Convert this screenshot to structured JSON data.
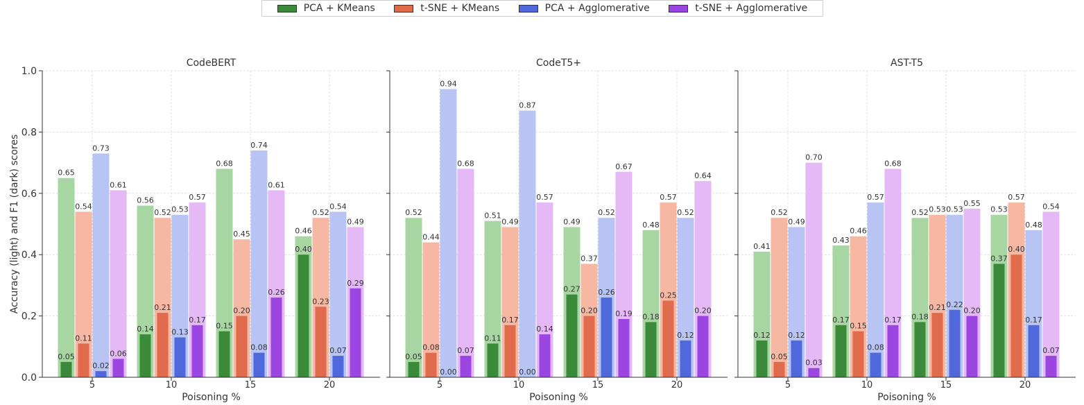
{
  "chart_data": {
    "type": "bar",
    "ylabel": "Accuracy (light) and F1 (dark) scores",
    "ylim": [
      0,
      1.0
    ],
    "yticks": [
      "0.0",
      "0.2",
      "0.4",
      "0.6",
      "0.8",
      "1.0"
    ],
    "grid": true,
    "legend_position": "top-center",
    "categories": [
      "5",
      "10",
      "15",
      "20"
    ],
    "methods": [
      {
        "name": "PCA + KMeans",
        "color": "#3a8a3a",
        "light_color": "#a8d6a2"
      },
      {
        "name": "t-SNE + KMeans",
        "color": "#e06a4c",
        "light_color": "#f6b7a3"
      },
      {
        "name": "PCA + Agglomerative",
        "color": "#4f68dc",
        "light_color": "#b8c4f4"
      },
      {
        "name": "t-SNE + Agglomerative",
        "color": "#9b46e0",
        "light_color": "#e5b8f6"
      }
    ],
    "panels": [
      {
        "title": "CodeBERT",
        "xlabel": "Poisoning %",
        "accuracy": [
          [
            0.65,
            0.56,
            0.68,
            0.46
          ],
          [
            0.54,
            0.52,
            0.45,
            0.52
          ],
          [
            0.73,
            0.53,
            0.74,
            0.54
          ],
          [
            0.61,
            0.57,
            0.61,
            0.49
          ]
        ],
        "accuracy_labels": [
          [
            "0.65",
            "0.56",
            "0.68",
            "0.46"
          ],
          [
            "0.54",
            "0.52",
            "0.45",
            "0.52"
          ],
          [
            "0.73",
            "0.53",
            "0.74",
            "0.54"
          ],
          [
            "0.61",
            "0.57",
            "0.61",
            "0.49"
          ]
        ],
        "f1": [
          [
            0.05,
            0.14,
            0.15,
            0.4
          ],
          [
            0.11,
            0.21,
            0.2,
            0.23
          ],
          [
            0.02,
            0.13,
            0.08,
            0.07
          ],
          [
            0.06,
            0.17,
            0.26,
            0.29
          ]
        ],
        "f1_labels": [
          [
            "0.05",
            "0.14",
            "0.15",
            "0.40"
          ],
          [
            "0.11",
            "0.21",
            "0.20",
            "0.23"
          ],
          [
            "0.02",
            "0.13",
            "0.08",
            "0.07"
          ],
          [
            "0.06",
            "0.17",
            "0.26",
            "0.29"
          ]
        ]
      },
      {
        "title": "CodeT5+",
        "xlabel": "Poisoning %",
        "accuracy": [
          [
            0.52,
            0.51,
            0.49,
            0.48
          ],
          [
            0.44,
            0.49,
            0.37,
            0.57
          ],
          [
            0.94,
            0.87,
            0.52,
            0.52
          ],
          [
            0.68,
            0.57,
            0.67,
            0.64
          ]
        ],
        "accuracy_labels": [
          [
            "0.52",
            "0.51",
            "0.49",
            "0.48"
          ],
          [
            "0.44",
            "0.49",
            "0.37",
            "0.57"
          ],
          [
            "0.94",
            "0.87",
            "0.52",
            "0.52"
          ],
          [
            "0.68",
            "0.57",
            "0.67",
            "0.64"
          ]
        ],
        "f1": [
          [
            0.05,
            0.11,
            0.27,
            0.18
          ],
          [
            0.08,
            0.17,
            0.2,
            0.25
          ],
          [
            0.0,
            0.0,
            0.26,
            0.12
          ],
          [
            0.07,
            0.14,
            0.19,
            0.2
          ]
        ],
        "f1_labels": [
          [
            "0.05",
            "0.11",
            "0.27",
            "0.18"
          ],
          [
            "0.08",
            "0.17",
            "0.20",
            "0.25"
          ],
          [
            "0.00",
            "0.00",
            "0.26",
            "0.12"
          ],
          [
            "0.07",
            "0.14",
            "0.19",
            "0.20"
          ]
        ]
      },
      {
        "title": "AST-T5",
        "xlabel": "Poisoning %",
        "accuracy": [
          [
            0.41,
            0.43,
            0.52,
            0.53
          ],
          [
            0.52,
            0.46,
            0.53,
            0.57
          ],
          [
            0.49,
            0.57,
            0.53,
            0.48
          ],
          [
            0.7,
            0.68,
            0.55,
            0.54
          ]
        ],
        "accuracy_labels": [
          [
            "0.41",
            "0.43",
            "0.52",
            "0.53"
          ],
          [
            "0.52",
            "0.46",
            "0.53",
            "0.57"
          ],
          [
            "0.49",
            "0.57",
            "0.53",
            "0.48"
          ],
          [
            "0.70",
            "0.68",
            "0.55",
            "0.54"
          ]
        ],
        "f1": [
          [
            0.12,
            0.17,
            0.18,
            0.37
          ],
          [
            0.05,
            0.15,
            0.21,
            0.4
          ],
          [
            0.12,
            0.08,
            0.22,
            0.17
          ],
          [
            0.03,
            0.17,
            0.2,
            0.07
          ]
        ],
        "f1_labels": [
          [
            "0.12",
            "0.17",
            "0.18",
            "0.37"
          ],
          [
            "0.05",
            "0.15",
            "0.21",
            "0.40"
          ],
          [
            "0.12",
            "0.08",
            "0.22",
            "0.17"
          ],
          [
            "0.03",
            "0.17",
            "0.20",
            "0.07"
          ]
        ]
      }
    ]
  }
}
